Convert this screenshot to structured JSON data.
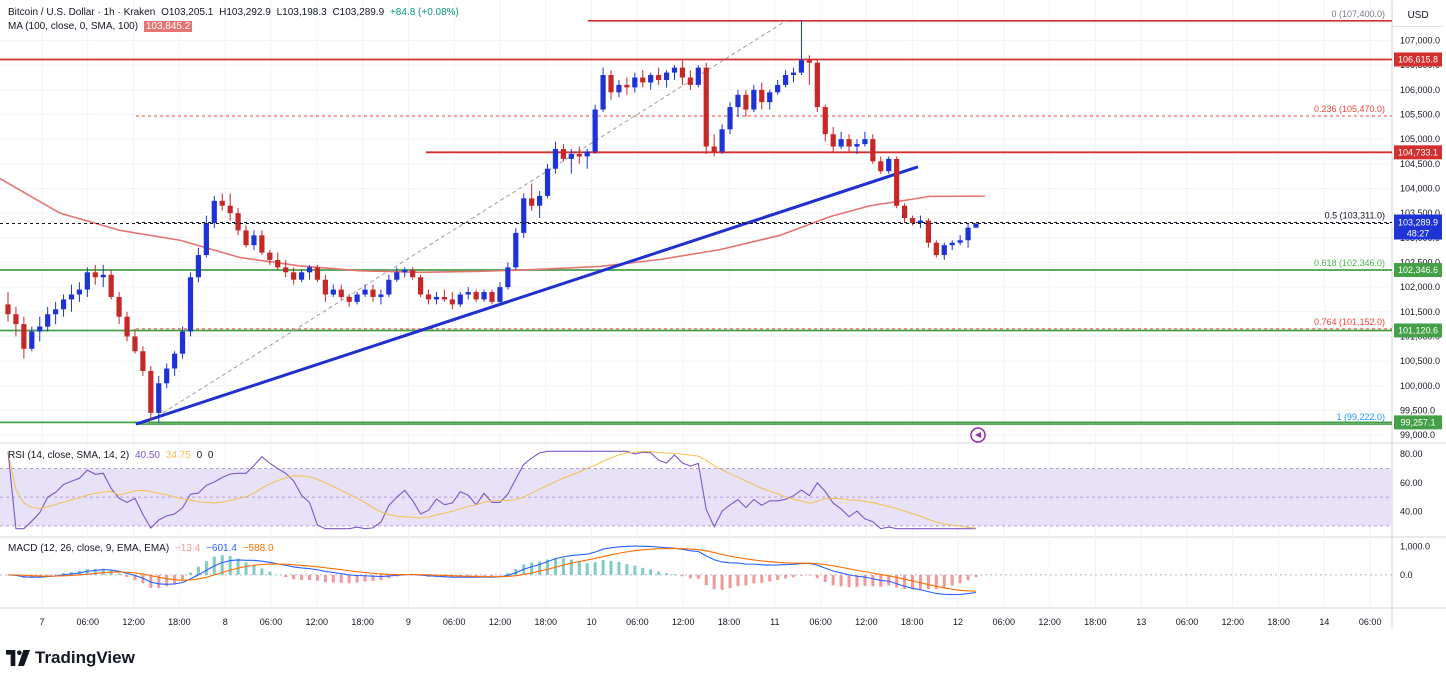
{
  "header": {
    "symbol": "Bitcoin / U.S. Dollar · 1h · Kraken",
    "open": "O103,205.1",
    "high": "H103,292.9",
    "low": "L103,198.3",
    "close": "C103,289.9",
    "change": "+84.8 (+0.08%)",
    "ma_label": "MA (100, close, 0, SMA, 100)",
    "ma_value": "103,845.2",
    "currency": "USD"
  },
  "rsi": {
    "label": "RSI (14, close, SMA, 14, 2)",
    "value": "40.50",
    "ma_value": "34.75",
    "extra1": "0",
    "extra2": "0"
  },
  "macd": {
    "label": "MACD (12, 26, close, 9, EMA, EMA)",
    "hist": "−13.4",
    "macd": "−601.4",
    "signal": "−588.0"
  },
  "brand": {
    "name": "TradingView"
  },
  "price_scale": {
    "ticks": [
      "107,000.0",
      "106,500.0",
      "106,000.0",
      "105,500.0",
      "105,000.0",
      "104,500.0",
      "104,000.0",
      "103,500.0",
      "103,000.0",
      "102,500.0",
      "102,000.0",
      "101,500.0",
      "101,000.0",
      "100,500.0",
      "100,000.0",
      "99,500.0",
      "99,000.0"
    ],
    "current_price": "103,289.9",
    "countdown": "48:27"
  },
  "rsi_scale": {
    "ticks": [
      "80.00",
      "60.00",
      "40.00"
    ]
  },
  "macd_scale": {
    "ticks": [
      "1,000.0",
      "0.0"
    ]
  },
  "time_axis": {
    "labels": [
      "7",
      "06:00",
      "12:00",
      "18:00",
      "8",
      "06:00",
      "12:00",
      "18:00",
      "9",
      "06:00",
      "12:00",
      "18:00",
      "10",
      "06:00",
      "12:00",
      "18:00",
      "11",
      "06:00",
      "12:00",
      "18:00",
      "12",
      "06:00",
      "12:00",
      "18:00",
      "13",
      "06:00",
      "12:00",
      "18:00",
      "14",
      "06:00"
    ]
  },
  "fibonacci": [
    {
      "label": "0 (107,400.0)",
      "price": 107400
    },
    {
      "label": "0.236 (105,470.0)",
      "price": 105470
    },
    {
      "label": "0.5 (103,311.0)",
      "price": 103311
    },
    {
      "label": "0.618 (102,346.0)",
      "price": 102346
    },
    {
      "label": "0.764 (101,152.0)",
      "price": 101152
    },
    {
      "label": "1 (99,222.0)",
      "price": 99222
    }
  ],
  "horizontal_lines": [
    {
      "label": "106,615.8",
      "price": 106615.8,
      "color": "#d32f2f"
    },
    {
      "label": "104,733.1",
      "price": 104733.1,
      "color": "#d32f2f"
    },
    {
      "label": "102,346.6",
      "price": 102346.6,
      "color": "#43a047"
    },
    {
      "label": "101,120.6",
      "price": 101120.6,
      "color": "#43a047"
    },
    {
      "label": "99,257.1",
      "price": 99257.1,
      "color": "#43a047"
    }
  ],
  "colors": {
    "up": "#1e33d6",
    "down": "#c62828",
    "ma": "#e57373",
    "trendline": "#1f2fd0",
    "resistance": "#d32f2f",
    "support": "#43a047",
    "rsi": "#7e57c2",
    "rsi_ma": "#f0c050",
    "macd": "#2962ff",
    "signal": "#ff6d00"
  },
  "chart_data": {
    "type": "candlestick",
    "symbol": "Bitcoin / U.S. Dollar",
    "interval": "1h",
    "ylim": [
      98900,
      107700
    ],
    "candles": [
      [
        101650,
        101900,
        101300,
        101450
      ],
      [
        101450,
        101600,
        101000,
        101250
      ],
      [
        101250,
        101400,
        100550,
        100750
      ],
      [
        100750,
        101200,
        100700,
        101100
      ],
      [
        101100,
        101400,
        100900,
        101200
      ],
      [
        101200,
        101600,
        101100,
        101450
      ],
      [
        101450,
        101700,
        101250,
        101550
      ],
      [
        101550,
        101850,
        101400,
        101750
      ],
      [
        101750,
        102050,
        101500,
        101850
      ],
      [
        101850,
        102100,
        101700,
        101950
      ],
      [
        101950,
        102400,
        101800,
        102300
      ],
      [
        102300,
        102450,
        102050,
        102200
      ],
      [
        102200,
        102450,
        102000,
        102250
      ],
      [
        102250,
        102350,
        101750,
        101800
      ],
      [
        101800,
        101900,
        101250,
        101400
      ],
      [
        101400,
        101500,
        100900,
        101000
      ],
      [
        101000,
        101150,
        100650,
        100700
      ],
      [
        100700,
        100800,
        100200,
        100300
      ],
      [
        100300,
        100400,
        99300,
        99450
      ],
      [
        99450,
        100200,
        99250,
        100050
      ],
      [
        100050,
        100450,
        99950,
        100350
      ],
      [
        100350,
        100700,
        100200,
        100650
      ],
      [
        100650,
        101200,
        100550,
        101100
      ],
      [
        101100,
        102300,
        101000,
        102200
      ],
      [
        102200,
        102800,
        102100,
        102650
      ],
      [
        102650,
        103450,
        102600,
        103300
      ],
      [
        103300,
        103850,
        103200,
        103750
      ],
      [
        103750,
        103900,
        103550,
        103650
      ],
      [
        103650,
        103900,
        103350,
        103500
      ],
      [
        103500,
        103600,
        103050,
        103150
      ],
      [
        103150,
        103250,
        102800,
        102850
      ],
      [
        102850,
        103150,
        102750,
        103050
      ],
      [
        103050,
        103150,
        102650,
        102700
      ],
      [
        102700,
        102750,
        102450,
        102550
      ],
      [
        102550,
        102700,
        102350,
        102400
      ],
      [
        102400,
        102550,
        102200,
        102300
      ],
      [
        102300,
        102400,
        102050,
        102150
      ],
      [
        102150,
        102350,
        102100,
        102300
      ],
      [
        102300,
        102450,
        102150,
        102400
      ],
      [
        102400,
        102450,
        102100,
        102150
      ],
      [
        102150,
        102250,
        101700,
        101850
      ],
      [
        101850,
        102050,
        101800,
        101950
      ],
      [
        101950,
        102050,
        101750,
        101800
      ],
      [
        101800,
        101850,
        101600,
        101700
      ],
      [
        101700,
        101900,
        101650,
        101850
      ],
      [
        101850,
        102050,
        101800,
        101950
      ],
      [
        101950,
        102050,
        101700,
        101800
      ],
      [
        101800,
        101950,
        101650,
        101850
      ],
      [
        101850,
        102250,
        101800,
        102150
      ],
      [
        102150,
        102400,
        102100,
        102300
      ],
      [
        102300,
        102400,
        102200,
        102350
      ],
      [
        102350,
        102400,
        102150,
        102200
      ],
      [
        102200,
        102250,
        101800,
        101850
      ],
      [
        101850,
        101950,
        101650,
        101750
      ],
      [
        101750,
        101900,
        101650,
        101800
      ],
      [
        101800,
        101950,
        101700,
        101750
      ],
      [
        101750,
        101900,
        101550,
        101650
      ],
      [
        101650,
        101900,
        101600,
        101850
      ],
      [
        101850,
        102000,
        101750,
        101900
      ],
      [
        101900,
        101950,
        101700,
        101750
      ],
      [
        101750,
        101950,
        101700,
        101900
      ],
      [
        101900,
        101950,
        101650,
        101700
      ],
      [
        101700,
        102100,
        101650,
        102000
      ],
      [
        102000,
        102500,
        101950,
        102400
      ],
      [
        102400,
        103200,
        102350,
        103100
      ],
      [
        103100,
        103900,
        103000,
        103800
      ],
      [
        103800,
        104100,
        103550,
        103650
      ],
      [
        103650,
        103950,
        103400,
        103850
      ],
      [
        103850,
        104500,
        103800,
        104400
      ],
      [
        104400,
        104950,
        104300,
        104800
      ],
      [
        104800,
        104900,
        104550,
        104600
      ],
      [
        104600,
        104800,
        104300,
        104700
      ],
      [
        104700,
        104850,
        104500,
        104650
      ],
      [
        104650,
        104800,
        104400,
        104750
      ],
      [
        104750,
        105700,
        104700,
        105600
      ],
      [
        105600,
        106450,
        105550,
        106300
      ],
      [
        106300,
        106400,
        105800,
        105950
      ],
      [
        105950,
        106200,
        105850,
        106100
      ],
      [
        106100,
        106250,
        105900,
        106050
      ],
      [
        106050,
        106350,
        105950,
        106250
      ],
      [
        106250,
        106400,
        106050,
        106150
      ],
      [
        106150,
        106350,
        106000,
        106300
      ],
      [
        106300,
        106450,
        106100,
        106200
      ],
      [
        106200,
        106400,
        106050,
        106350
      ],
      [
        106350,
        106500,
        106200,
        106450
      ],
      [
        106450,
        106600,
        106100,
        106250
      ],
      [
        106250,
        106400,
        106000,
        106100
      ],
      [
        106100,
        106500,
        106050,
        106450
      ],
      [
        106450,
        106550,
        104700,
        104850
      ],
      [
        104850,
        105100,
        104650,
        104750
      ],
      [
        104750,
        105300,
        104700,
        105200
      ],
      [
        105200,
        105750,
        105100,
        105650
      ],
      [
        105650,
        106000,
        105450,
        105900
      ],
      [
        105900,
        106000,
        105450,
        105600
      ],
      [
        105600,
        106100,
        105550,
        106000
      ],
      [
        106000,
        106150,
        105600,
        105750
      ],
      [
        105750,
        106000,
        105600,
        105950
      ],
      [
        105950,
        106200,
        105900,
        106100
      ],
      [
        106100,
        106400,
        106050,
        106300
      ],
      [
        106300,
        106450,
        106150,
        106350
      ],
      [
        106350,
        107400,
        106300,
        106600
      ],
      [
        106600,
        106700,
        106100,
        106550
      ],
      [
        106550,
        106600,
        105550,
        105650
      ],
      [
        105650,
        105700,
        104950,
        105100
      ],
      [
        105100,
        105250,
        104750,
        104850
      ],
      [
        104850,
        105150,
        104800,
        105000
      ],
      [
        105000,
        105100,
        104750,
        104850
      ],
      [
        104850,
        105000,
        104700,
        104900
      ],
      [
        104900,
        105150,
        104850,
        105000
      ],
      [
        105000,
        105100,
        104500,
        104550
      ],
      [
        104550,
        104650,
        104300,
        104350
      ],
      [
        104350,
        104650,
        104300,
        104600
      ],
      [
        104600,
        104650,
        103600,
        103650
      ],
      [
        103650,
        103700,
        103300,
        103400
      ],
      [
        103400,
        103450,
        103250,
        103300
      ],
      [
        103300,
        103450,
        103200,
        103350
      ],
      [
        103350,
        103400,
        102800,
        102900
      ],
      [
        102900,
        102950,
        102600,
        102650
      ],
      [
        102650,
        102900,
        102550,
        102850
      ],
      [
        102850,
        102950,
        102750,
        102900
      ],
      [
        102900,
        103050,
        102850,
        102950
      ],
      [
        102950,
        103300,
        102800,
        103205
      ],
      [
        103205,
        103293,
        103198,
        103290
      ]
    ],
    "ma100": {
      "name": "MA (100, close, 0, SMA, 100)",
      "last": 103845.2
    },
    "current_price": 103289.9,
    "rsi": {
      "last": 40.5,
      "ma_last": 34.75,
      "bands": [
        30,
        70
      ],
      "scale_ticks": [
        40,
        60,
        80
      ]
    },
    "macd": {
      "macd_last": -601.4,
      "signal_last": -588.0,
      "hist_last": -13.4,
      "scale_ticks": [
        0,
        1000
      ]
    }
  }
}
